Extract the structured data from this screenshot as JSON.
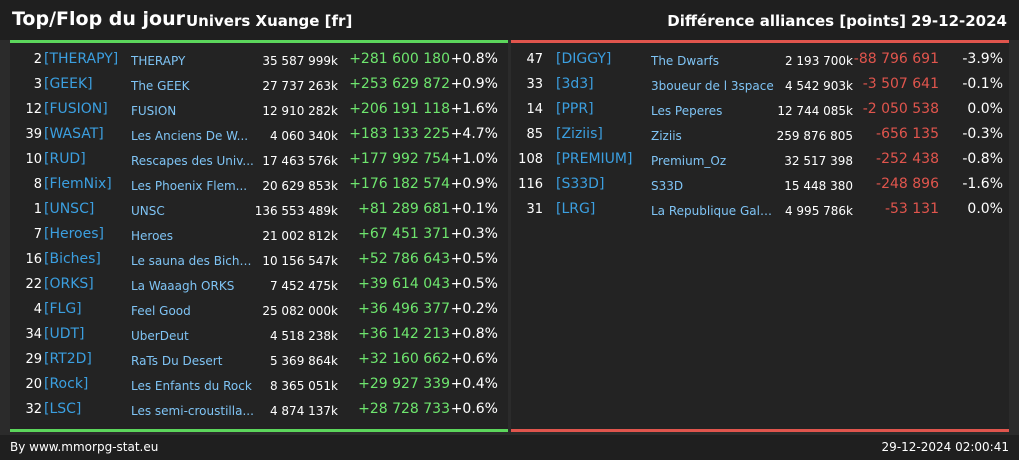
{
  "header": {
    "title": "Top/Flop du jour",
    "universe": "Univers Xuange [fr]",
    "diff_label": "Différence alliances [points]",
    "date": "29-12-2024"
  },
  "top": [
    {
      "rank": "2",
      "tag": "[THERAPY]",
      "name": "THERAPY",
      "points": "35 587 999k",
      "delta": "+281 600 180",
      "pct": "+0.8%"
    },
    {
      "rank": "3",
      "tag": "[GEEK]",
      "name": "The GEEK",
      "points": "27 737 263k",
      "delta": "+253 629 872",
      "pct": "+0.9%"
    },
    {
      "rank": "12",
      "tag": "[FUSION]",
      "name": "FUSION",
      "points": "12 910 282k",
      "delta": "+206 191 118",
      "pct": "+1.6%"
    },
    {
      "rank": "39",
      "tag": "[WASAT]",
      "name": "Les Anciens De W...",
      "points": "4 060 340k",
      "delta": "+183 133 225",
      "pct": "+4.7%"
    },
    {
      "rank": "10",
      "tag": "[RUD]",
      "name": "Rescapes des Univ...",
      "points": "17 463 576k",
      "delta": "+177 992 754",
      "pct": "+1.0%"
    },
    {
      "rank": "8",
      "tag": "[FlemNix]",
      "name": "Les Phoenix Flem...",
      "points": "20 629 853k",
      "delta": "+176 182 574",
      "pct": "+0.9%"
    },
    {
      "rank": "1",
      "tag": "[UNSC]",
      "name": "UNSC",
      "points": "136 553 489k",
      "delta": "+81 289 681",
      "pct": "+0.1%"
    },
    {
      "rank": "7",
      "tag": "[Heroes]",
      "name": "Heroes",
      "points": "21 002 812k",
      "delta": "+67 451 371",
      "pct": "+0.3%"
    },
    {
      "rank": "16",
      "tag": "[Biches]",
      "name": "Le sauna des Biche...",
      "points": "10 156 547k",
      "delta": "+52 786 643",
      "pct": "+0.5%"
    },
    {
      "rank": "22",
      "tag": "[ORKS]",
      "name": "La Waaagh ORKS",
      "points": "7 452 475k",
      "delta": "+39 614 043",
      "pct": "+0.5%"
    },
    {
      "rank": "4",
      "tag": "[FLG]",
      "name": "Feel Good",
      "points": "25 082 000k",
      "delta": "+36 496 377",
      "pct": "+0.2%"
    },
    {
      "rank": "34",
      "tag": "[UDT]",
      "name": "UberDeut",
      "points": "4 518 238k",
      "delta": "+36 142 213",
      "pct": "+0.8%"
    },
    {
      "rank": "29",
      "tag": "[RT2D]",
      "name": "RaTs Du Desert",
      "points": "5 369 864k",
      "delta": "+32 160 662",
      "pct": "+0.6%"
    },
    {
      "rank": "20",
      "tag": "[Rock]",
      "name": "Les Enfants du Rock",
      "points": "8 365 051k",
      "delta": "+29 927 339",
      "pct": "+0.4%"
    },
    {
      "rank": "32",
      "tag": "[LSC]",
      "name": "Les semi-croustilla...",
      "points": "4 874 137k",
      "delta": "+28 728 733",
      "pct": "+0.6%"
    }
  ],
  "flop": [
    {
      "rank": "47",
      "tag": "[DIGGY]",
      "name": "The Dwarfs",
      "points": "2 193 700k",
      "delta": "-88 796 691",
      "pct": "-3.9%"
    },
    {
      "rank": "33",
      "tag": "[3d3]",
      "name": "3boueur de l 3space",
      "points": "4 542 903k",
      "delta": "-3 507 641",
      "pct": "-0.1%"
    },
    {
      "rank": "14",
      "tag": "[PPR]",
      "name": "Les Peperes",
      "points": "12 744 085k",
      "delta": "-2 050 538",
      "pct": "0.0%"
    },
    {
      "rank": "85",
      "tag": "[Ziziis]",
      "name": "Ziziis",
      "points": "259 876 805",
      "delta": "-656 135",
      "pct": "-0.3%"
    },
    {
      "rank": "108",
      "tag": "[PREMIUM]",
      "name": "Premium_Oz",
      "points": "32 517 398",
      "delta": "-252 438",
      "pct": "-0.8%"
    },
    {
      "rank": "116",
      "tag": "[S33D]",
      "name": "S33D",
      "points": "15 448 380",
      "delta": "-248 896",
      "pct": "-1.6%"
    },
    {
      "rank": "31",
      "tag": "[LRG]",
      "name": "La Republique Gala...",
      "points": "4 995 786k",
      "delta": "-53 131",
      "pct": "0.0%"
    }
  ],
  "footer": {
    "source": "By www.mmorpg-stat.eu",
    "timestamp": "29-12-2024 02:00:41"
  },
  "colors": {
    "top_accent": "#5cd65c",
    "flop_accent": "#e0554d",
    "tag": "#3b9fe0",
    "name": "#7fc4f5"
  }
}
